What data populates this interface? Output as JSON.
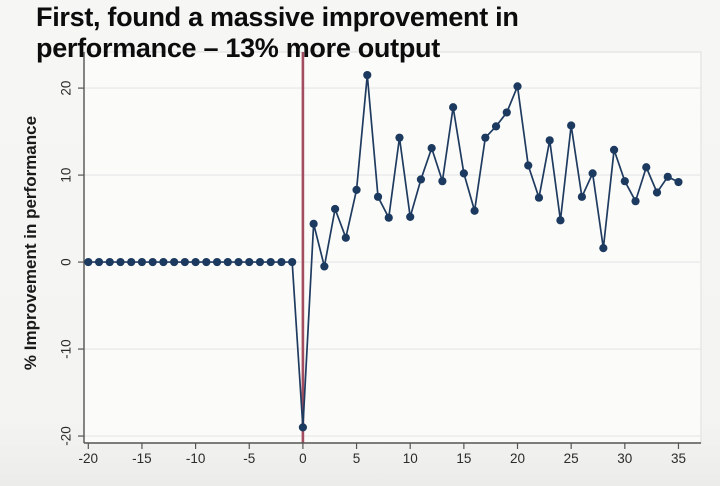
{
  "slide": {
    "title_line1": "First, found a massive improvement in",
    "title_line2": "performance – 13% more output"
  },
  "chart_data": {
    "type": "line",
    "title": "First, found a massive improvement in performance – 13% more output",
    "xlabel": "",
    "ylabel": "% Improvement in performance",
    "xlim": [
      -20.4,
      37.1
    ],
    "ylim": [
      -20.8,
      24.15
    ],
    "x_ticks": [
      -20,
      -15,
      -10,
      -5,
      0,
      5,
      10,
      15,
      20,
      25,
      30,
      35
    ],
    "y_ticks": [
      -20,
      -10,
      0,
      10,
      20
    ],
    "grid": "horizontal",
    "legend": "none",
    "y_tick_label_rotation": -90,
    "reference_line": {
      "axis": "vertical",
      "value": 0
    },
    "series": [
      {
        "name": "% improvement in performance",
        "marker": "circle",
        "x": [
          -20,
          -19,
          -18,
          -17,
          -16,
          -15,
          -14,
          -13,
          -12,
          -11,
          -10,
          -9,
          -8,
          -7,
          -6,
          -5,
          -4,
          -3,
          -2,
          -1,
          0,
          1,
          2,
          3,
          4,
          5,
          6,
          7,
          8,
          9,
          10,
          11,
          12,
          13,
          14,
          15,
          16,
          17,
          18,
          19,
          20,
          21,
          22,
          23,
          24,
          25,
          26,
          27,
          28,
          29,
          30,
          31,
          32,
          33,
          34,
          35
        ],
        "y": [
          0,
          0,
          0,
          0,
          0,
          0,
          0,
          0,
          0,
          0,
          0,
          0,
          0,
          0,
          0,
          0,
          0,
          0,
          0,
          0,
          -19,
          4.4,
          -0.5,
          6.1,
          2.8,
          8.3,
          21.5,
          7.5,
          5.1,
          14.3,
          5.2,
          9.5,
          13.1,
          9.3,
          17.8,
          10.2,
          5.9,
          14.3,
          15.6,
          17.2,
          20.2,
          11.1,
          7.4,
          14,
          4.8,
          15.7,
          7.5,
          10.2,
          1.6,
          12.9,
          9.3,
          7,
          10.9,
          8,
          9.8,
          9.2
        ]
      }
    ],
    "colors": {
      "series": "#1f3b60",
      "marker": "#1c3a5f",
      "reference_line": "#a34e60",
      "grid": "#e6e6e8",
      "frame": "#e3e3e1",
      "axis": "#555555",
      "plot_background": "#fbfbf9"
    }
  }
}
